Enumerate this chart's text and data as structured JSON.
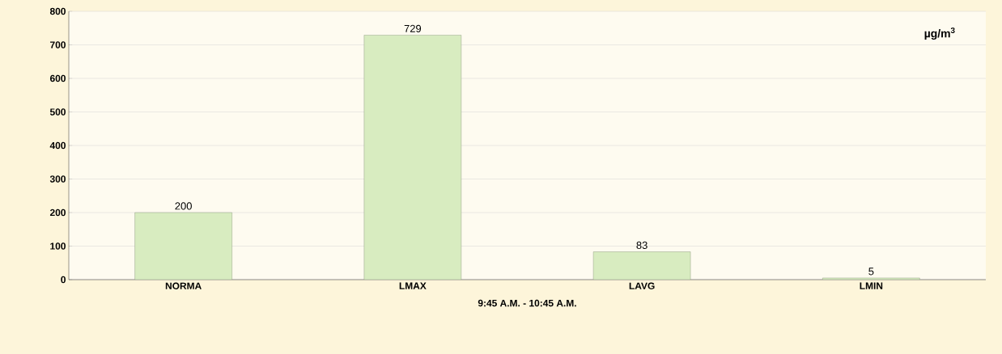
{
  "chart_data": {
    "type": "bar",
    "categories": [
      "NORMA",
      "LMAX",
      "LAVG",
      "LMIN"
    ],
    "values": [
      200,
      729,
      83,
      5
    ],
    "color": "#d8ecc0",
    "xlabel": "9:45 A.M. - 10:45 A.M.",
    "annotations": [
      "µg/m$^{3}$"
    ],
    "ylim": [
      0,
      800
    ],
    "yticks": [
      0,
      100,
      200,
      300,
      400,
      500,
      600,
      700,
      800
    ],
    "grid": "y",
    "data_labels": true
  }
}
